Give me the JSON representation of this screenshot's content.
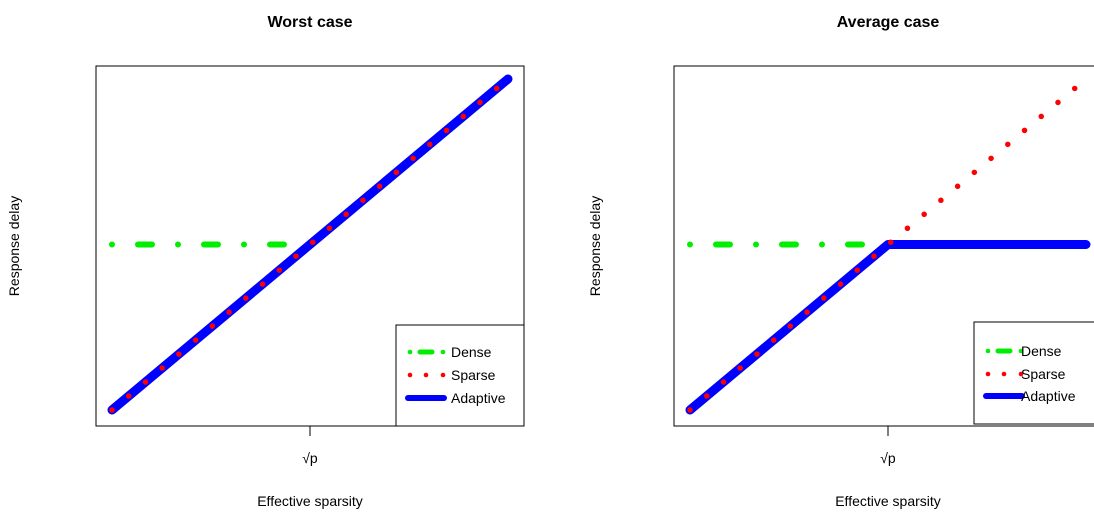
{
  "chart_data": [
    {
      "type": "line",
      "title": "Worst case",
      "xlabel": "Effective sparsity",
      "ylabel": "Response delay",
      "xtick_label": "√p",
      "xtick_value": 0.5,
      "xlim": [
        0,
        1
      ],
      "ylim": [
        0,
        1
      ],
      "grid": false,
      "legend": {
        "placement": "bottom-right",
        "entries": [
          "Dense",
          "Sparse",
          "Adaptive"
        ]
      },
      "series": [
        {
          "name": "Dense",
          "style": "dot-dash",
          "color": "#00ee00",
          "x": [
            0,
            0.5,
            1
          ],
          "y": [
            0.5,
            0.5,
            1
          ]
        },
        {
          "name": "Sparse",
          "style": "dotted",
          "color": "#ff0000",
          "x": [
            0,
            1
          ],
          "y": [
            0,
            1
          ]
        },
        {
          "name": "Adaptive",
          "style": "solid-thick",
          "color": "#0000ff",
          "x": [
            0,
            1
          ],
          "y": [
            0,
            1
          ]
        }
      ]
    },
    {
      "type": "line",
      "title": "Average case",
      "xlabel": "Effective sparsity",
      "ylabel": "Response delay",
      "xtick_label": "√p",
      "xtick_value": 0.5,
      "xlim": [
        0,
        1
      ],
      "ylim": [
        0,
        1
      ],
      "grid": false,
      "legend": {
        "placement": "bottom-right",
        "entries": [
          "Dense",
          "Sparse",
          "Adaptive"
        ]
      },
      "series": [
        {
          "name": "Dense",
          "style": "dot-dash",
          "color": "#00ee00",
          "x": [
            0,
            1
          ],
          "y": [
            0.5,
            0.5
          ]
        },
        {
          "name": "Sparse",
          "style": "dotted",
          "color": "#ff0000",
          "x": [
            0,
            1
          ],
          "y": [
            0,
            1
          ]
        },
        {
          "name": "Adaptive",
          "style": "solid-thick",
          "color": "#0000ff",
          "x": [
            0,
            0.5,
            1
          ],
          "y": [
            0,
            0.5,
            0.5
          ]
        }
      ]
    }
  ]
}
